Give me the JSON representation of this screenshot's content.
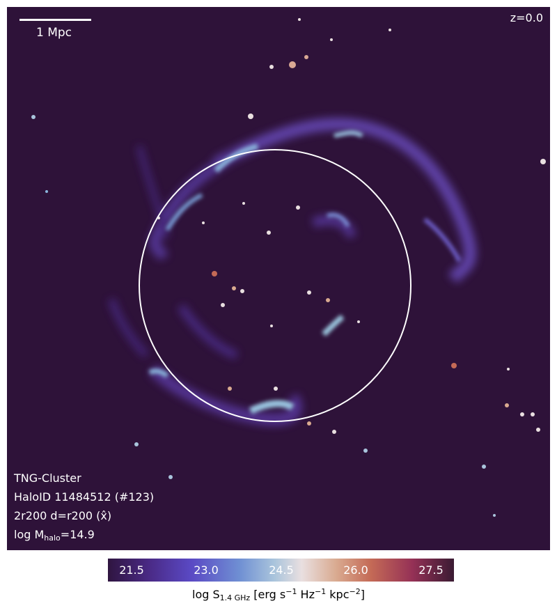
{
  "scale_bar": {
    "label": "1 Mpc"
  },
  "redshift": "z=0.0",
  "info": {
    "simulation": "TNG-Cluster",
    "halo": "HaloID 11484512 (#123)",
    "projection": "2r200 d=r200 (x̂)",
    "mass_prefix": "log M",
    "mass_sub": "halo",
    "mass_value": "=14.9"
  },
  "colorbar": {
    "ticks": [
      "21.5",
      "23.0",
      "24.5",
      "26.0",
      "27.5"
    ],
    "label_prefix": "log S",
    "label_sub": "1.4 GHz",
    "label_units_a": " [erg s",
    "label_exp1": "−1",
    "label_units_b": " Hz",
    "label_exp2": "−1",
    "label_units_c": " kpc",
    "label_exp3": "−2",
    "label_units_d": "]"
  },
  "colors": {
    "background": "#2e1239",
    "circle": "#ffffff"
  }
}
